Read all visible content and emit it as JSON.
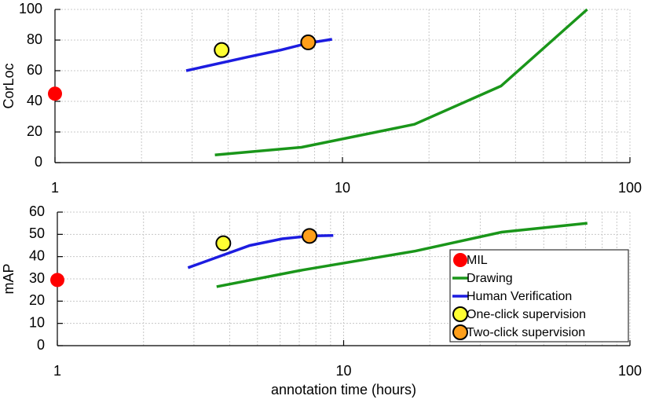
{
  "chart_data": [
    {
      "type": "line",
      "ylabel": "CorLoc",
      "log_x": true,
      "grid": true,
      "minor_grid": true,
      "xlim": [
        1,
        100
      ],
      "xticks": [
        1,
        10,
        100
      ],
      "ylim": [
        0,
        100
      ],
      "yticks": [
        0,
        20,
        40,
        60,
        80,
        100
      ],
      "series": [
        {
          "name": "MIL",
          "color": "#ff0000",
          "style": "marker",
          "x": [
            1
          ],
          "values": [
            45
          ]
        },
        {
          "name": "Drawing",
          "color": "#1a961a",
          "style": "line",
          "x": [
            3.6,
            7.2,
            17.8,
            35.6,
            71
          ],
          "values": [
            5,
            10,
            25,
            50,
            100
          ]
        },
        {
          "name": "Human Verification",
          "color": "#1c1ce0",
          "style": "line",
          "x": [
            2.86,
            4.7,
            6.1,
            7.6,
            9.2
          ],
          "values": [
            60,
            69,
            73.5,
            78,
            80.5
          ]
        },
        {
          "name": "One-click supervision",
          "color": "#ffff33",
          "edge": "#000000",
          "style": "marker",
          "x": [
            3.8
          ],
          "values": [
            73.5
          ]
        },
        {
          "name": "Two-click supervision",
          "color": "#ff9f1a",
          "edge": "#000000",
          "style": "marker",
          "x": [
            7.6
          ],
          "values": [
            78.5
          ]
        }
      ]
    },
    {
      "type": "line",
      "ylabel": "mAP",
      "xlabel": "annotation time (hours)",
      "log_x": true,
      "grid": true,
      "minor_grid": true,
      "legend": "lower right",
      "xlim": [
        1,
        100
      ],
      "xticks": [
        1,
        10,
        100
      ],
      "ylim": [
        0,
        60
      ],
      "yticks": [
        0,
        10,
        20,
        30,
        40,
        50,
        60
      ],
      "series": [
        {
          "name": "MIL",
          "color": "#ff0000",
          "style": "marker",
          "x": [
            1
          ],
          "values": [
            29.5
          ]
        },
        {
          "name": "Drawing",
          "color": "#1a961a",
          "style": "line",
          "x": [
            3.6,
            7.2,
            17.8,
            35.6,
            71
          ],
          "values": [
            26.5,
            34,
            42.5,
            51,
            55
          ]
        },
        {
          "name": "Human Verification",
          "color": "#1c1ce0",
          "style": "line",
          "x": [
            2.86,
            4.7,
            6.1,
            7.6,
            9.2
          ],
          "values": [
            35,
            45,
            48,
            49.3,
            49.5
          ]
        },
        {
          "name": "One-click supervision",
          "color": "#ffff33",
          "edge": "#000000",
          "style": "marker",
          "x": [
            3.8
          ],
          "values": [
            46
          ]
        },
        {
          "name": "Two-click supervision",
          "color": "#ff9f1a",
          "edge": "#000000",
          "style": "marker",
          "x": [
            7.6
          ],
          "values": [
            49.3
          ]
        }
      ]
    }
  ]
}
